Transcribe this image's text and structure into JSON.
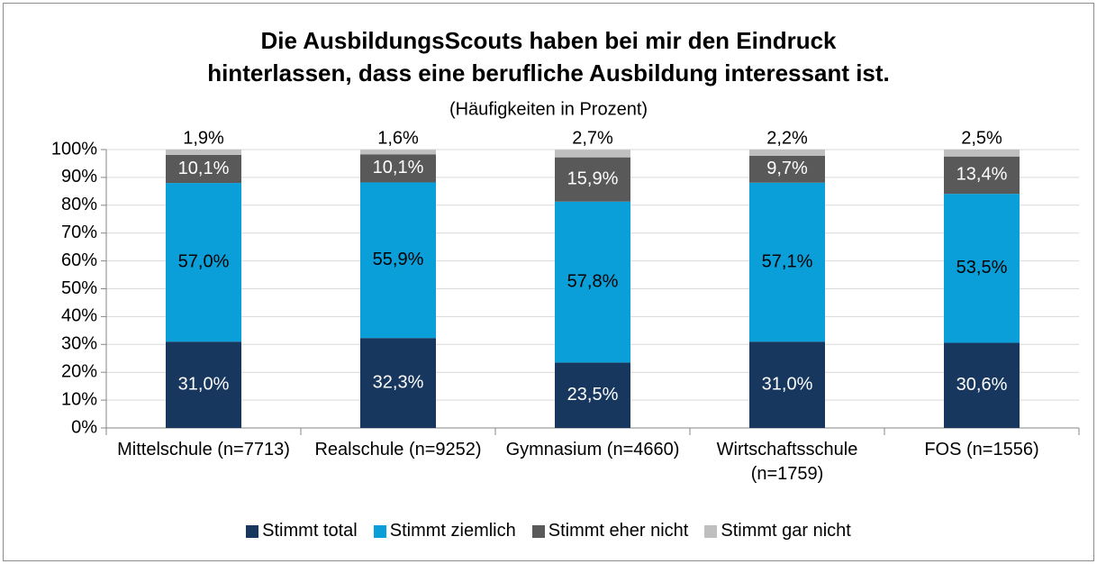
{
  "chart_data": {
    "type": "stacked_bar",
    "title": [
      "Die AusbildungsScouts haben bei mir den Eindruck",
      "hinterlassen, dass eine berufliche Ausbildung interessant ist."
    ],
    "subtitle": "(Häufigkeiten in Prozent)",
    "categories": [
      "Mittelschule (n=7713)",
      "Realschule (n=9252)",
      "Gymnasium (n=4660)",
      "Wirtschaftsschule (n=1759)",
      "FOS (n=1556)"
    ],
    "series": [
      {
        "name": "Stimmt total",
        "color": "#17375e",
        "values": [
          31.0,
          32.3,
          23.5,
          31.0,
          30.6
        ],
        "value_labels": [
          "31,0%",
          "32,3%",
          "23,5%",
          "31,0%",
          "30,6%"
        ]
      },
      {
        "name": "Stimmt ziemlich",
        "color": "#0a9fd8",
        "values": [
          57.0,
          55.9,
          57.8,
          57.1,
          53.5
        ],
        "value_labels": [
          "57,0%",
          "55,9%",
          "57,8%",
          "57,1%",
          "53,5%"
        ]
      },
      {
        "name": "Stimmt eher nicht",
        "color": "#595959",
        "values": [
          10.1,
          10.1,
          15.9,
          9.7,
          13.4
        ],
        "value_labels": [
          "10,1%",
          "10,1%",
          "15,9%",
          "9,7%",
          "13,4%"
        ]
      },
      {
        "name": "Stimmt gar nicht",
        "color": "#bfbfbf",
        "values": [
          1.9,
          1.6,
          2.7,
          2.2,
          2.5
        ],
        "value_labels": [
          "1,9%",
          "1,6%",
          "2,7%",
          "2,2%",
          "2,5%"
        ]
      }
    ],
    "ylim": [
      0,
      100
    ],
    "yticks": [
      {
        "value": 0,
        "label": "0%"
      },
      {
        "value": 10,
        "label": "10%"
      },
      {
        "value": 20,
        "label": "20%"
      },
      {
        "value": 30,
        "label": "30%"
      },
      {
        "value": 40,
        "label": "40%"
      },
      {
        "value": 50,
        "label": "50%"
      },
      {
        "value": 60,
        "label": "60%"
      },
      {
        "value": 70,
        "label": "70%"
      },
      {
        "value": 80,
        "label": "80%"
      },
      {
        "value": 90,
        "label": "90%"
      },
      {
        "value": 100,
        "label": "100%"
      }
    ],
    "grid": true,
    "legend": "bottom"
  }
}
